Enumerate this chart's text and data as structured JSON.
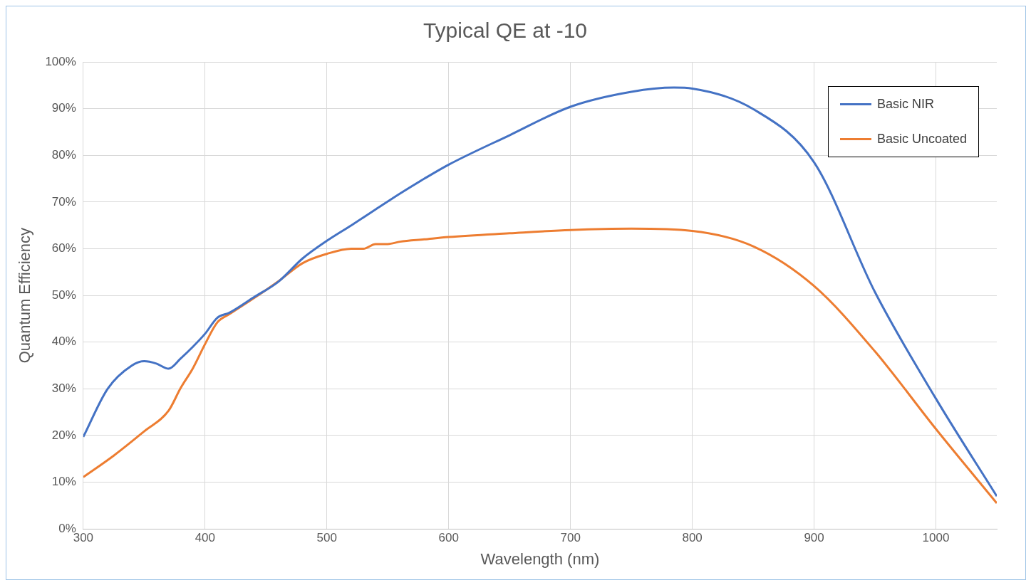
{
  "chart_data": {
    "type": "line",
    "title": "Typical QE at -10",
    "xlabel": "Wavelength (nm)",
    "ylabel": "Quantum Efficiency",
    "xlim": [
      300,
      1050
    ],
    "xticks": [
      300,
      400,
      500,
      600,
      700,
      800,
      900,
      1000
    ],
    "ylim": [
      0,
      100
    ],
    "yticks": [
      {
        "value": 0,
        "label": "0%"
      },
      {
        "value": 10,
        "label": "10%"
      },
      {
        "value": 20,
        "label": "20%"
      },
      {
        "value": 30,
        "label": "30%"
      },
      {
        "value": 40,
        "label": "40%"
      },
      {
        "value": 50,
        "label": "50%"
      },
      {
        "value": 60,
        "label": "60%"
      },
      {
        "value": 70,
        "label": "70%"
      },
      {
        "value": 80,
        "label": "80%"
      },
      {
        "value": 90,
        "label": "90%"
      },
      {
        "value": 100,
        "label": "100%"
      }
    ],
    "grid": true,
    "legend": "top right",
    "marker": "none",
    "line_style": "solid",
    "series": [
      {
        "name": "Basic NIR",
        "color": "#4472c4",
        "x": [
          300,
          320,
          340,
          350,
          360,
          370,
          380,
          390,
          400,
          410,
          420,
          440,
          460,
          480,
          500,
          520,
          540,
          560,
          580,
          600,
          650,
          700,
          750,
          785,
          800,
          850,
          900,
          950,
          1000,
          1050
        ],
        "values": [
          19.7,
          30,
          35,
          35.9,
          35.4,
          34.3,
          36.5,
          39,
          41.8,
          45.2,
          46.3,
          49.6,
          52.9,
          57.9,
          61.7,
          65,
          68.4,
          71.8,
          75,
          78,
          84.3,
          90.4,
          93.6,
          94.5,
          94.3,
          89.9,
          78.5,
          50.7,
          27.9,
          7
        ]
      },
      {
        "name": "Basic Uncoated",
        "color": "#ed7d31",
        "x": [
          300,
          325,
          350,
          370,
          380,
          390,
          400,
          410,
          420,
          440,
          460,
          480,
          500,
          520,
          530,
          540,
          550,
          560,
          580,
          600,
          650,
          700,
          750,
          800,
          850,
          900,
          950,
          1000,
          1050
        ],
        "values": [
          11.1,
          15.7,
          20.9,
          25.3,
          30.2,
          34.4,
          39.6,
          44.2,
          46,
          49.4,
          53,
          56.9,
          58.9,
          60,
          60,
          61,
          61,
          61.5,
          62,
          62.5,
          63.3,
          64,
          64.3,
          63.8,
          60.5,
          52,
          38,
          21.4,
          5.5
        ]
      }
    ]
  }
}
